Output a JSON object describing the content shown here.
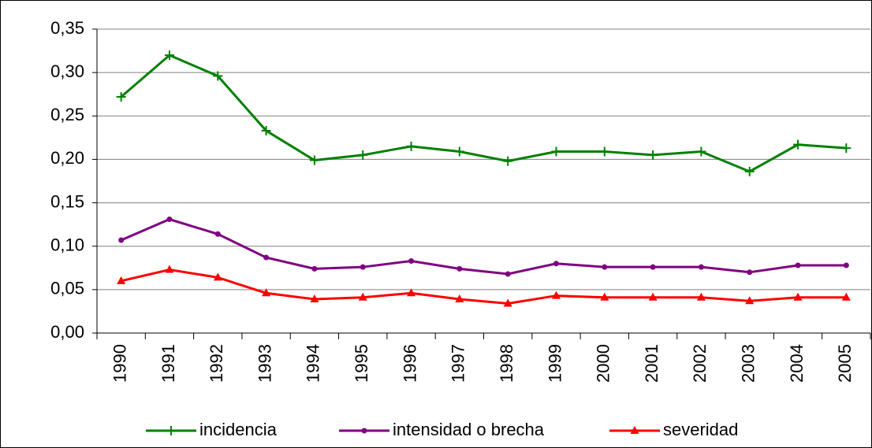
{
  "chart_data": {
    "type": "line",
    "categories": [
      "1990",
      "1991",
      "1992",
      "1993",
      "1994",
      "1995",
      "1996",
      "1997",
      "1998",
      "1999",
      "2000",
      "2001",
      "2002",
      "2003",
      "2004",
      "2005"
    ],
    "series": [
      {
        "name": "incidencia",
        "color": "#008000",
        "marker": "plus",
        "values": [
          0.272,
          0.32,
          0.296,
          0.233,
          0.199,
          0.205,
          0.215,
          0.209,
          0.198,
          0.209,
          0.209,
          0.205,
          0.209,
          0.186,
          0.217,
          0.213
        ]
      },
      {
        "name": "intensidad o brecha",
        "color": "#800080",
        "marker": "circle",
        "values": [
          0.107,
          0.131,
          0.114,
          0.087,
          0.074,
          0.076,
          0.083,
          0.074,
          0.068,
          0.08,
          0.076,
          0.076,
          0.076,
          0.07,
          0.078,
          0.078
        ]
      },
      {
        "name": "severidad",
        "color": "#ff0000",
        "marker": "triangle",
        "values": [
          0.06,
          0.073,
          0.064,
          0.046,
          0.039,
          0.041,
          0.046,
          0.039,
          0.034,
          0.043,
          0.041,
          0.041,
          0.041,
          0.037,
          0.041,
          0.041
        ]
      }
    ],
    "ylim": [
      0,
      0.35
    ],
    "yticks": [
      {
        "value": 0,
        "label": "0,00"
      },
      {
        "value": 0.05,
        "label": "0,05"
      },
      {
        "value": 0.1,
        "label": "0,10"
      },
      {
        "value": 0.15,
        "label": "0,15"
      },
      {
        "value": 0.2,
        "label": "0,20"
      },
      {
        "value": 0.25,
        "label": "0,25"
      },
      {
        "value": 0.3,
        "label": "0,30"
      },
      {
        "value": 0.35,
        "label": "0,35"
      }
    ],
    "grid": true,
    "legend": "bottom"
  }
}
